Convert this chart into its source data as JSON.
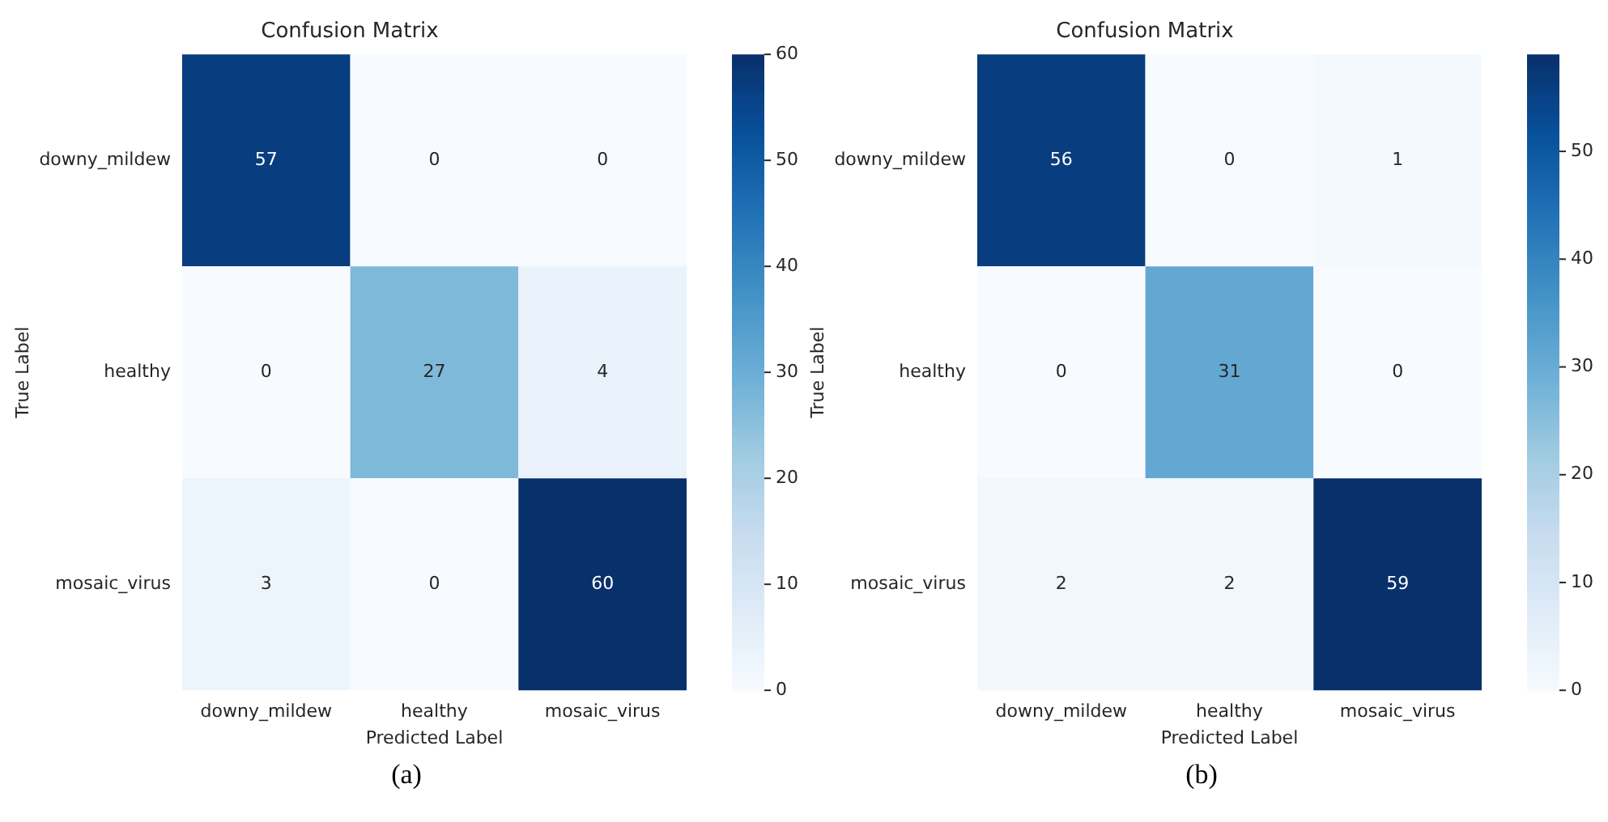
{
  "chart_data": [
    {
      "type": "heatmap",
      "title": "Confusion Matrix",
      "xlabel": "Predicted Label",
      "ylabel": "True Label",
      "categories": [
        "downy_mildew",
        "healthy",
        "mosaic_virus"
      ],
      "y_categories": [
        "downy_mildew",
        "healthy",
        "mosaic_virus"
      ],
      "cells": [
        [
          57,
          0,
          0
        ],
        [
          0,
          27,
          4
        ],
        [
          3,
          0,
          60
        ]
      ],
      "clim": [
        0,
        60
      ],
      "cticks": [
        0,
        10,
        20,
        30,
        40,
        50,
        60
      ],
      "data_labels": true,
      "annotations": [
        "(a)"
      ]
    },
    {
      "type": "heatmap",
      "title": "Confusion Matrix",
      "xlabel": "Predicted Label",
      "ylabel": "True Label",
      "categories": [
        "downy_mildew",
        "healthy",
        "mosaic_virus"
      ],
      "y_categories": [
        "downy_mildew",
        "healthy",
        "mosaic_virus"
      ],
      "cells": [
        [
          56,
          0,
          1
        ],
        [
          0,
          31,
          0
        ],
        [
          2,
          2,
          59
        ]
      ],
      "clim": [
        0,
        59
      ],
      "cticks": [
        0,
        10,
        20,
        30,
        40,
        50
      ],
      "data_labels": true,
      "annotations": [
        "(b)"
      ]
    }
  ]
}
